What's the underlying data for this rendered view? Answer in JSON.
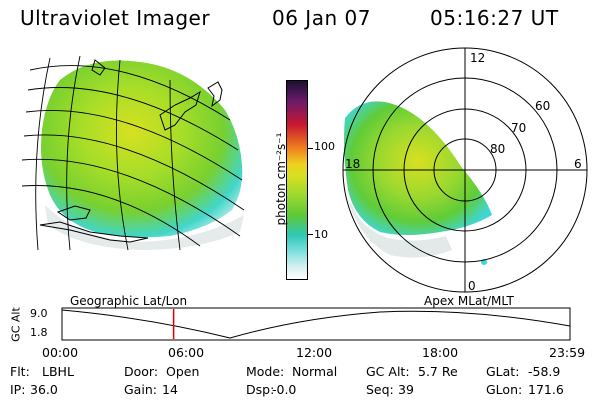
{
  "header": {
    "title": "Ultraviolet Imager",
    "date": "06 Jan 07",
    "time": "05:16:27 UT"
  },
  "colorbar": {
    "label": "photon cm⁻²s⁻¹",
    "ticks": [
      "100",
      "10"
    ]
  },
  "polar": {
    "mlt_labels": {
      "top": "12",
      "left": "18",
      "right": "6",
      "bottom": "0"
    },
    "lat_labels": [
      "60",
      "70",
      "80"
    ]
  },
  "timeline": {
    "left_title": "Geographic Lat/Lon",
    "right_title": "Apex MLat/MLT",
    "axis_label": "GC Alt",
    "y_ticks": [
      "9.0",
      "1.8"
    ],
    "x_ticks": [
      "00:00",
      "06:00",
      "12:00",
      "18:00",
      "23:59"
    ],
    "marker_hours": 5.27
  },
  "info": {
    "row1": [
      {
        "label": "Flt:",
        "value": "LBHL"
      },
      {
        "label": "Door:",
        "value": "Open"
      },
      {
        "label": "Mode:",
        "value": "Normal"
      },
      {
        "label": "GC Alt:",
        "value": "5.7 Re"
      },
      {
        "label": "GLat:",
        "value": "-58.9"
      }
    ],
    "row2": [
      {
        "label": "IP:",
        "value": "36.0"
      },
      {
        "label": "Gain:",
        "value": "14"
      },
      {
        "label": "Dsp:",
        "value": "-0.0"
      },
      {
        "label": "Seq:",
        "value": "39"
      },
      {
        "label": "GLon:",
        "value": "171.6"
      }
    ]
  },
  "colors": {
    "marker": "#e00000",
    "aurora_green": "#7ed321",
    "aurora_yellow": "#d8e020",
    "aurora_cyan": "#3fd6d6"
  }
}
